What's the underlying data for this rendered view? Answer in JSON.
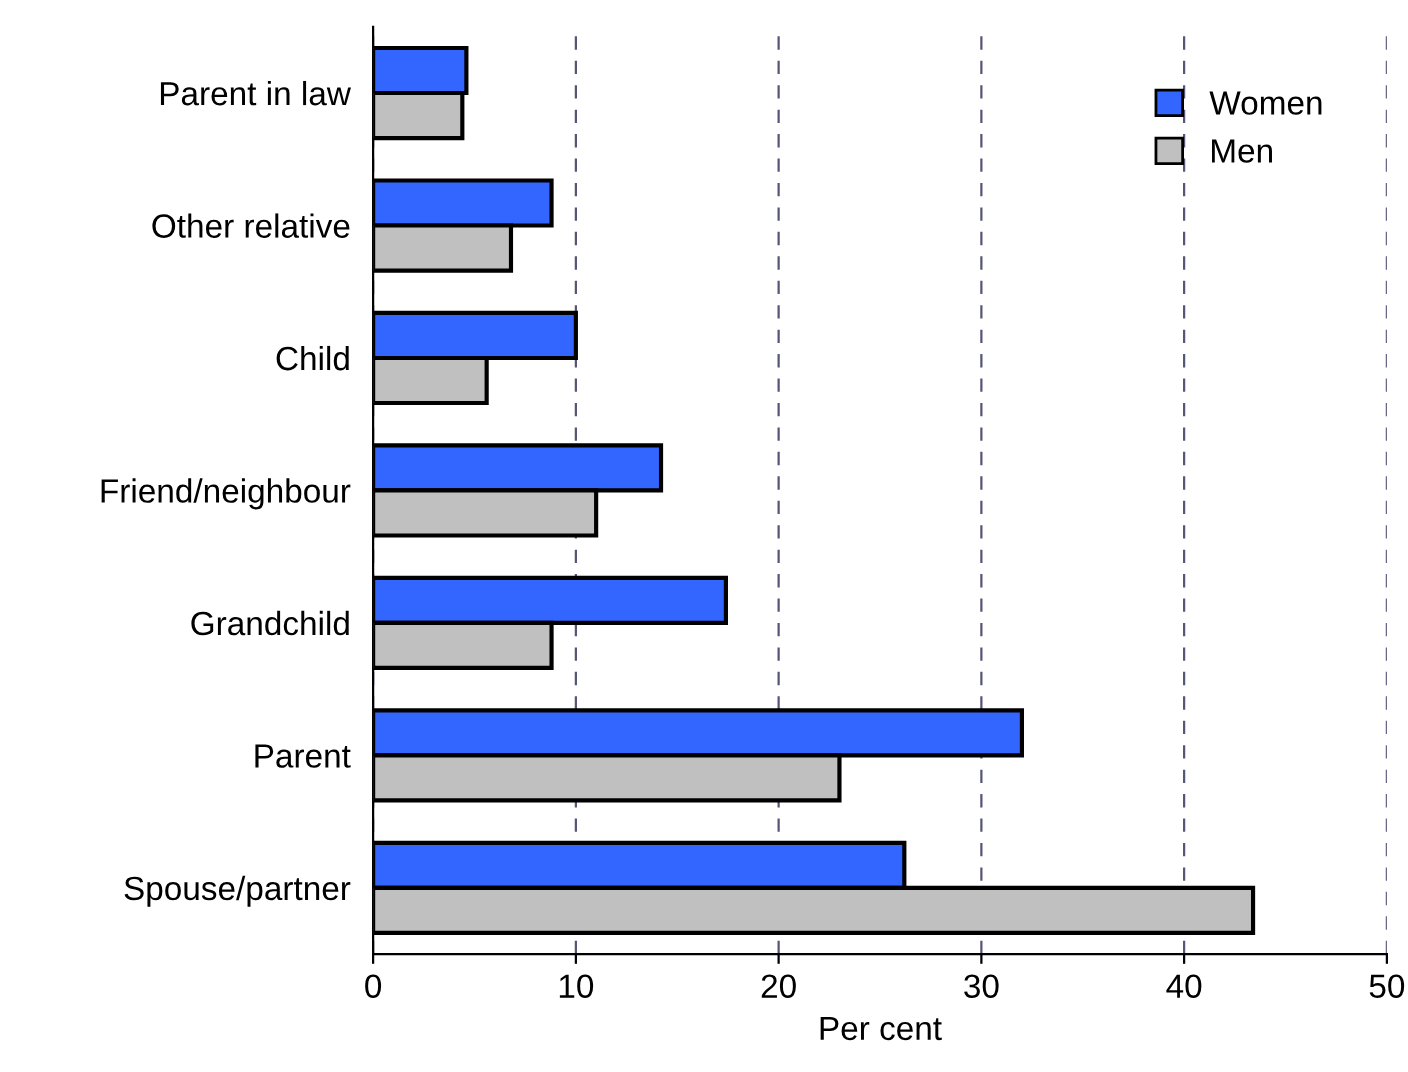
{
  "chart_data": {
    "type": "bar",
    "orientation": "horizontal",
    "xlabel": "Per cent",
    "categories": [
      "Parent in law",
      "Other relative",
      "Child",
      "Friend/neighbour",
      "Grandchild",
      "Parent",
      "Spouse/partner"
    ],
    "series": [
      {
        "name": "Women",
        "color": "#3366ff",
        "values": [
          4.6,
          8.8,
          10.0,
          14.2,
          17.4,
          32.0,
          26.2
        ]
      },
      {
        "name": "Men",
        "color": "#c0c0c0",
        "values": [
          4.4,
          6.8,
          5.6,
          11.0,
          8.8,
          23.0,
          43.4
        ]
      }
    ],
    "xlim": [
      0,
      50
    ],
    "xticks": [
      0,
      10,
      20,
      30,
      40,
      50
    ],
    "grid": "x",
    "legend": "top right"
  }
}
